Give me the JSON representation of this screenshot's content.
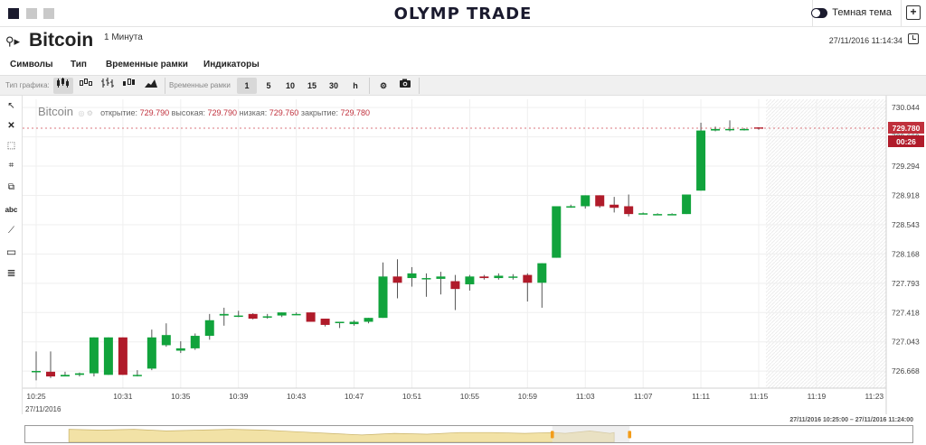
{
  "header": {
    "logo": "OLYMP TRADE",
    "theme_label": "Темная тема",
    "add_window": "+"
  },
  "symbol": {
    "name": "Bitcoin",
    "timeframe": "1 Минута",
    "datetime": "27/11/2016 11:14:34"
  },
  "menu": [
    "Символы",
    "Тип",
    "Временные рамки",
    "Индикаторы"
  ],
  "toolbar": {
    "chart_type_label": "Тип графика:",
    "timeframe_label": "Временные рамки",
    "timeframes": [
      "1",
      "5",
      "10",
      "15",
      "30",
      "h"
    ],
    "active_timeframe": "1"
  },
  "legend": {
    "name": "Bitcoin",
    "open_label": "открытие:",
    "open": "729.790",
    "high_label": "высокая:",
    "high": "729.790",
    "low_label": "низкая:",
    "low": "729.760",
    "close_label": "закрытие:",
    "close": "729.780"
  },
  "left_tools": [
    {
      "name": "cursor-icon",
      "glyph": "↖"
    },
    {
      "name": "delete-icon",
      "glyph": "✕"
    },
    {
      "name": "zoom-select-icon",
      "glyph": "⬚"
    },
    {
      "name": "crosshair-icon",
      "glyph": "⌗"
    },
    {
      "name": "copy-icon",
      "glyph": "⧉"
    },
    {
      "name": "text-icon",
      "glyph": "abc"
    },
    {
      "name": "line-icon",
      "glyph": "⟋"
    },
    {
      "name": "rectangle-icon",
      "glyph": "▭"
    },
    {
      "name": "fibonacci-icon",
      "glyph": "≣"
    }
  ],
  "colors": {
    "up": "#11a33c",
    "down": "#b01b2a",
    "price_badge": "#c0303c",
    "navigator_fill": "#f2e2a6",
    "handle": "#f39c1a"
  },
  "navigator": {
    "range_label": "27/11/2016 10:25:00 – 27/11/2016 11:24:00"
  },
  "date_label": "27/11/2016",
  "chart_data": {
    "type": "candlestick",
    "ylim": [
      726.45,
      730.15
    ],
    "y_ticks": [
      "730.044",
      "729.669",
      "729.294",
      "728.918",
      "728.543",
      "728.168",
      "727.793",
      "727.418",
      "727.043",
      "726.668"
    ],
    "x_ticks": [
      "10:25",
      "10:31",
      "10:35",
      "10:39",
      "10:43",
      "10:47",
      "10:51",
      "10:55",
      "10:59",
      "11:03",
      "11:07",
      "11:11",
      "11:15",
      "11:19",
      "11:23"
    ],
    "x_tick_minutes": [
      0,
      6,
      10,
      14,
      18,
      22,
      26,
      30,
      34,
      38,
      42,
      46,
      50,
      54,
      58
    ],
    "current_price": "729.780",
    "timer": "00:26",
    "candles": [
      {
        "t": 0,
        "o": 726.67,
        "h": 726.92,
        "l": 726.55,
        "c": 726.67
      },
      {
        "t": 1,
        "o": 726.66,
        "h": 726.92,
        "l": 726.58,
        "c": 726.6
      },
      {
        "t": 2,
        "o": 726.6,
        "h": 726.66,
        "l": 726.6,
        "c": 726.62
      },
      {
        "t": 3,
        "o": 726.62,
        "h": 726.65,
        "l": 726.6,
        "c": 726.64
      },
      {
        "t": 4,
        "o": 726.64,
        "h": 727.1,
        "l": 726.6,
        "c": 727.1
      },
      {
        "t": 5,
        "o": 726.62,
        "h": 727.1,
        "l": 726.62,
        "c": 727.1
      },
      {
        "t": 6,
        "o": 727.1,
        "h": 727.1,
        "l": 726.62,
        "c": 726.62
      },
      {
        "t": 7,
        "o": 726.62,
        "h": 726.68,
        "l": 726.6,
        "c": 726.62
      },
      {
        "t": 8,
        "o": 726.7,
        "h": 727.2,
        "l": 726.68,
        "c": 727.1
      },
      {
        "t": 9,
        "o": 727.0,
        "h": 727.28,
        "l": 726.98,
        "c": 727.13
      },
      {
        "t": 10,
        "o": 726.93,
        "h": 727.05,
        "l": 726.9,
        "c": 726.96
      },
      {
        "t": 11,
        "o": 726.96,
        "h": 727.15,
        "l": 726.94,
        "c": 727.12
      },
      {
        "t": 12,
        "o": 727.12,
        "h": 727.4,
        "l": 727.07,
        "c": 727.32
      },
      {
        "t": 13,
        "o": 727.38,
        "h": 727.48,
        "l": 727.25,
        "c": 727.4
      },
      {
        "t": 14,
        "o": 727.38,
        "h": 727.44,
        "l": 727.36,
        "c": 727.38
      },
      {
        "t": 15,
        "o": 727.4,
        "h": 727.41,
        "l": 727.33,
        "c": 727.34
      },
      {
        "t": 16,
        "o": 727.36,
        "h": 727.4,
        "l": 727.34,
        "c": 727.37
      },
      {
        "t": 17,
        "o": 727.38,
        "h": 727.42,
        "l": 727.36,
        "c": 727.42
      },
      {
        "t": 18,
        "o": 727.4,
        "h": 727.42,
        "l": 727.4,
        "c": 727.4
      },
      {
        "t": 19,
        "o": 727.42,
        "h": 727.42,
        "l": 727.3,
        "c": 727.3
      },
      {
        "t": 20,
        "o": 727.34,
        "h": 727.34,
        "l": 727.24,
        "c": 727.26
      },
      {
        "t": 21,
        "o": 727.3,
        "h": 727.3,
        "l": 727.22,
        "c": 727.3
      },
      {
        "t": 22,
        "o": 727.27,
        "h": 727.32,
        "l": 727.25,
        "c": 727.3
      },
      {
        "t": 23,
        "o": 727.3,
        "h": 727.35,
        "l": 727.28,
        "c": 727.35
      },
      {
        "t": 24,
        "o": 727.35,
        "h": 728.06,
        "l": 727.35,
        "c": 727.88
      },
      {
        "t": 25,
        "o": 727.88,
        "h": 728.1,
        "l": 727.6,
        "c": 727.8
      },
      {
        "t": 26,
        "o": 727.86,
        "h": 728.0,
        "l": 727.75,
        "c": 727.92
      },
      {
        "t": 27,
        "o": 727.86,
        "h": 727.92,
        "l": 727.62,
        "c": 727.86
      },
      {
        "t": 28,
        "o": 727.85,
        "h": 727.94,
        "l": 727.65,
        "c": 727.88
      },
      {
        "t": 29,
        "o": 727.82,
        "h": 727.9,
        "l": 727.45,
        "c": 727.72
      },
      {
        "t": 30,
        "o": 727.78,
        "h": 727.9,
        "l": 727.7,
        "c": 727.88
      },
      {
        "t": 31,
        "o": 727.88,
        "h": 727.9,
        "l": 727.84,
        "c": 727.86
      },
      {
        "t": 32,
        "o": 727.86,
        "h": 727.92,
        "l": 727.84,
        "c": 727.89
      },
      {
        "t": 33,
        "o": 727.88,
        "h": 727.91,
        "l": 727.84,
        "c": 727.88
      },
      {
        "t": 34,
        "o": 727.9,
        "h": 727.92,
        "l": 727.56,
        "c": 727.8
      },
      {
        "t": 35,
        "o": 727.8,
        "h": 728.05,
        "l": 727.48,
        "c": 728.05
      },
      {
        "t": 36,
        "o": 728.12,
        "h": 728.78,
        "l": 728.12,
        "c": 728.78
      },
      {
        "t": 37,
        "o": 728.78,
        "h": 728.8,
        "l": 728.76,
        "c": 728.78
      },
      {
        "t": 38,
        "o": 728.78,
        "h": 728.92,
        "l": 728.75,
        "c": 728.92
      },
      {
        "t": 39,
        "o": 728.92,
        "h": 728.92,
        "l": 728.76,
        "c": 728.78
      },
      {
        "t": 40,
        "o": 728.8,
        "h": 728.9,
        "l": 728.7,
        "c": 728.76
      },
      {
        "t": 41,
        "o": 728.78,
        "h": 728.93,
        "l": 728.65,
        "c": 728.68
      },
      {
        "t": 42,
        "o": 728.68,
        "h": 728.7,
        "l": 728.68,
        "c": 728.69
      },
      {
        "t": 43,
        "o": 728.68,
        "h": 728.69,
        "l": 728.68,
        "c": 728.68
      },
      {
        "t": 44,
        "o": 728.68,
        "h": 728.69,
        "l": 728.68,
        "c": 728.68
      },
      {
        "t": 45,
        "o": 728.68,
        "h": 728.93,
        "l": 728.68,
        "c": 728.93
      },
      {
        "t": 46,
        "o": 728.98,
        "h": 729.85,
        "l": 728.98,
        "c": 729.75
      },
      {
        "t": 47,
        "o": 729.75,
        "h": 729.8,
        "l": 729.74,
        "c": 729.77
      },
      {
        "t": 48,
        "o": 729.76,
        "h": 729.88,
        "l": 729.74,
        "c": 729.77
      },
      {
        "t": 49,
        "o": 729.76,
        "h": 729.78,
        "l": 729.75,
        "c": 729.77
      },
      {
        "t": 50,
        "o": 729.79,
        "h": 729.79,
        "l": 729.76,
        "c": 729.78
      }
    ]
  }
}
